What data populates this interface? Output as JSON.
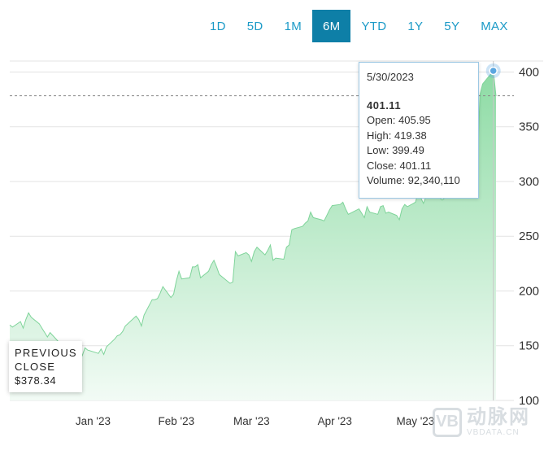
{
  "range_buttons": [
    {
      "label": "1D",
      "active": false
    },
    {
      "label": "5D",
      "active": false
    },
    {
      "label": "1M",
      "active": false
    },
    {
      "label": "6M",
      "active": true
    },
    {
      "label": "YTD",
      "active": false
    },
    {
      "label": "1Y",
      "active": false
    },
    {
      "label": "5Y",
      "active": false
    },
    {
      "label": "MAX",
      "active": false
    }
  ],
  "tooltip": {
    "date": "5/30/2023",
    "price": "401.11",
    "open": "Open: 405.95",
    "high": "High: 419.38",
    "low": "Low: 399.49",
    "close": "Close: 401.11",
    "volume": "Volume: 92,340,110"
  },
  "previous_close": {
    "label_line1": "PREVIOUS",
    "label_line2": "CLOSE",
    "value": "$378.34"
  },
  "watermark": {
    "logo": "VB",
    "cn": "动脉网",
    "en": "VBDATA.CN"
  },
  "colors": {
    "accent": "#0e7fa7",
    "link": "#1b9ac7",
    "area_top": "#8ddba4",
    "area_bottom": "#f2fbf5",
    "grid": "#e3e3e3",
    "prev_close_line": "#8a8a8a",
    "hover_line": "#c8c8c8",
    "marker": "#5aa6e0"
  },
  "chart_data": {
    "type": "area",
    "title": "",
    "xlabel": "",
    "ylabel": "",
    "ylim": [
      100,
      410
    ],
    "y_ticks": [
      100,
      150,
      200,
      250,
      300,
      350,
      400
    ],
    "x_tick_labels": [
      {
        "date": "2023-01-01",
        "label": "Jan '23"
      },
      {
        "date": "2023-02-01",
        "label": "Feb '23"
      },
      {
        "date": "2023-03-01",
        "label": "Mar '23"
      },
      {
        "date": "2023-04-01",
        "label": "Apr '23"
      },
      {
        "date": "2023-05-01",
        "label": "May '23"
      }
    ],
    "previous_close": 378.34,
    "highlight": {
      "date": "2023-05-30",
      "value": 401.11
    },
    "grid": true,
    "series": [
      {
        "points": [
          [
            "2022-12-01",
            169
          ],
          [
            "2022-12-02",
            167
          ],
          [
            "2022-12-05",
            172
          ],
          [
            "2022-12-06",
            166
          ],
          [
            "2022-12-07",
            174
          ],
          [
            "2022-12-08",
            180
          ],
          [
            "2022-12-09",
            176
          ],
          [
            "2022-12-12",
            170
          ],
          [
            "2022-12-13",
            166
          ],
          [
            "2022-12-14",
            162
          ],
          [
            "2022-12-15",
            158
          ],
          [
            "2022-12-16",
            162
          ],
          [
            "2022-12-19",
            154
          ],
          [
            "2022-12-20",
            148
          ],
          [
            "2022-12-21",
            153
          ],
          [
            "2022-12-22",
            147
          ],
          [
            "2022-12-23",
            152
          ],
          [
            "2022-12-27",
            145
          ],
          [
            "2022-12-28",
            141
          ],
          [
            "2022-12-29",
            148
          ],
          [
            "2022-12-30",
            146
          ],
          [
            "2023-01-03",
            143
          ],
          [
            "2023-01-04",
            147
          ],
          [
            "2023-01-05",
            142
          ],
          [
            "2023-01-06",
            149
          ],
          [
            "2023-01-09",
            156
          ],
          [
            "2023-01-10",
            159
          ],
          [
            "2023-01-11",
            160
          ],
          [
            "2023-01-12",
            163
          ],
          [
            "2023-01-13",
            168
          ],
          [
            "2023-01-17",
            177
          ],
          [
            "2023-01-18",
            174
          ],
          [
            "2023-01-19",
            168
          ],
          [
            "2023-01-20",
            178
          ],
          [
            "2023-01-23",
            192
          ],
          [
            "2023-01-24",
            192
          ],
          [
            "2023-01-25",
            193
          ],
          [
            "2023-01-26",
            198
          ],
          [
            "2023-01-27",
            204
          ],
          [
            "2023-01-30",
            194
          ],
          [
            "2023-01-31",
            197
          ],
          [
            "2023-02-01",
            209
          ],
          [
            "2023-02-02",
            218
          ],
          [
            "2023-02-03",
            211
          ],
          [
            "2023-02-06",
            212
          ],
          [
            "2023-02-07",
            222
          ],
          [
            "2023-02-08",
            222
          ],
          [
            "2023-02-09",
            224
          ],
          [
            "2023-02-10",
            212
          ],
          [
            "2023-02-13",
            218
          ],
          [
            "2023-02-14",
            224
          ],
          [
            "2023-02-15",
            228
          ],
          [
            "2023-02-16",
            222
          ],
          [
            "2023-02-17",
            215
          ],
          [
            "2023-02-21",
            207
          ],
          [
            "2023-02-22",
            208
          ],
          [
            "2023-02-23",
            236
          ],
          [
            "2023-02-24",
            232
          ],
          [
            "2023-02-27",
            235
          ],
          [
            "2023-02-28",
            233
          ],
          [
            "2023-03-01",
            227
          ],
          [
            "2023-03-02",
            236
          ],
          [
            "2023-03-03",
            240
          ],
          [
            "2023-03-06",
            233
          ],
          [
            "2023-03-07",
            237
          ],
          [
            "2023-03-08",
            242
          ],
          [
            "2023-03-09",
            228
          ],
          [
            "2023-03-10",
            230
          ],
          [
            "2023-03-13",
            229
          ],
          [
            "2023-03-14",
            240
          ],
          [
            "2023-03-15",
            242
          ],
          [
            "2023-03-16",
            256
          ],
          [
            "2023-03-17",
            257
          ],
          [
            "2023-03-20",
            259
          ],
          [
            "2023-03-21",
            262
          ],
          [
            "2023-03-22",
            264
          ],
          [
            "2023-03-23",
            272
          ],
          [
            "2023-03-24",
            267
          ],
          [
            "2023-03-27",
            265
          ],
          [
            "2023-03-28",
            264
          ],
          [
            "2023-03-29",
            269
          ],
          [
            "2023-03-30",
            274
          ],
          [
            "2023-03-31",
            278
          ],
          [
            "2023-04-03",
            279
          ],
          [
            "2023-04-04",
            281
          ],
          [
            "2023-04-05",
            275
          ],
          [
            "2023-04-06",
            270
          ],
          [
            "2023-04-10",
            275
          ],
          [
            "2023-04-11",
            271
          ],
          [
            "2023-04-12",
            267
          ],
          [
            "2023-04-13",
            277
          ],
          [
            "2023-04-14",
            272
          ],
          [
            "2023-04-17",
            270
          ],
          [
            "2023-04-18",
            277
          ],
          [
            "2023-04-19",
            278
          ],
          [
            "2023-04-20",
            271
          ],
          [
            "2023-04-21",
            272
          ],
          [
            "2023-04-24",
            269
          ],
          [
            "2023-04-25",
            265
          ],
          [
            "2023-04-26",
            275
          ],
          [
            "2023-04-27",
            279
          ],
          [
            "2023-04-28",
            277
          ],
          [
            "2023-05-01",
            281
          ],
          [
            "2023-05-02",
            290
          ],
          [
            "2023-05-03",
            285
          ],
          [
            "2023-05-04",
            280
          ],
          [
            "2023-05-05",
            287
          ],
          [
            "2023-05-08",
            291
          ],
          [
            "2023-05-09",
            288
          ],
          [
            "2023-05-10",
            285
          ],
          [
            "2023-05-11",
            283
          ],
          [
            "2023-05-12",
            285
          ],
          [
            "2023-05-15",
            289
          ],
          [
            "2023-05-16",
            291
          ],
          [
            "2023-05-17",
            300
          ],
          [
            "2023-05-18",
            313
          ],
          [
            "2023-05-19",
            318
          ],
          [
            "2023-05-22",
            310
          ],
          [
            "2023-05-23",
            305
          ],
          [
            "2023-05-24",
            306
          ],
          [
            "2023-05-25",
            379
          ],
          [
            "2023-05-26",
            389
          ],
          [
            "2023-05-30",
            401.11
          ],
          [
            "2023-05-31",
            378
          ]
        ]
      }
    ]
  }
}
